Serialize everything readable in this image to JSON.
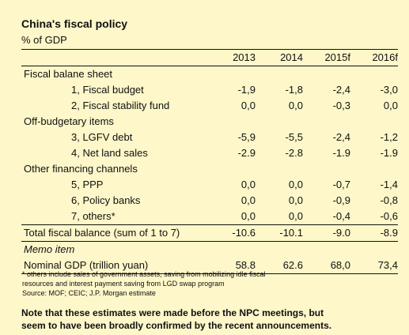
{
  "title": "China's fiscal policy",
  "subtitle": "% of GDP",
  "columns": [
    "2013",
    "2014",
    "2015f",
    "2016f"
  ],
  "rows": [
    {
      "type": "section",
      "label": "Fiscal balane sheet",
      "values": []
    },
    {
      "type": "item",
      "label": "1, Fiscal budget",
      "values": [
        "-1,9",
        "-1,8",
        "-2,4",
        "-3,0"
      ]
    },
    {
      "type": "item",
      "label": "2, Fiscal stability fund",
      "values": [
        "0,0",
        "0,0",
        "-0,3",
        "0,0"
      ]
    },
    {
      "type": "section",
      "label": "Off-budgetary items",
      "values": []
    },
    {
      "type": "item",
      "label": "3, LGFV debt",
      "values": [
        "-5,9",
        "-5,5",
        "-2,4",
        "-1,2"
      ]
    },
    {
      "type": "item",
      "label": "4, Net land sales",
      "values": [
        "-2.9",
        "-2.8",
        "-1.9",
        "-1.9"
      ]
    },
    {
      "type": "section",
      "label": "Other financing channels",
      "values": []
    },
    {
      "type": "item",
      "label": "5, PPP",
      "values": [
        "0,0",
        "0,0",
        "-0,7",
        "-1,4"
      ]
    },
    {
      "type": "item",
      "label": "6, Policy banks",
      "values": [
        "0,0",
        "0,0",
        "-0,9",
        "-0,8"
      ]
    },
    {
      "type": "item",
      "label": "7, others*",
      "values": [
        "0,0",
        "0,0",
        "-0,4",
        "-0,6"
      ]
    },
    {
      "type": "total",
      "label": "Total fiscal balance (sum of 1 to 7)",
      "values": [
        "-10.6",
        "-10.1",
        "-9.0",
        "-8.9"
      ]
    },
    {
      "type": "memo",
      "label": "Memo item",
      "values": []
    },
    {
      "type": "gdp",
      "label": "Nominal GDP (trillion yuan)",
      "values": [
        "58.8",
        "62.6",
        "68,0",
        "73,4"
      ]
    }
  ],
  "footnote_lines": [
    "* others include sales of government assets, saving from mobilizing idle fiscal",
    "resources and interest payment saving from LGD swap program",
    "Source: MOF; CEIC; J.P. Morgan estimate"
  ],
  "note_lines": [
    "Note that these estimates were made before the NPC meetings, but",
    "seem to have been broadly confirmed by the recent announcements."
  ]
}
